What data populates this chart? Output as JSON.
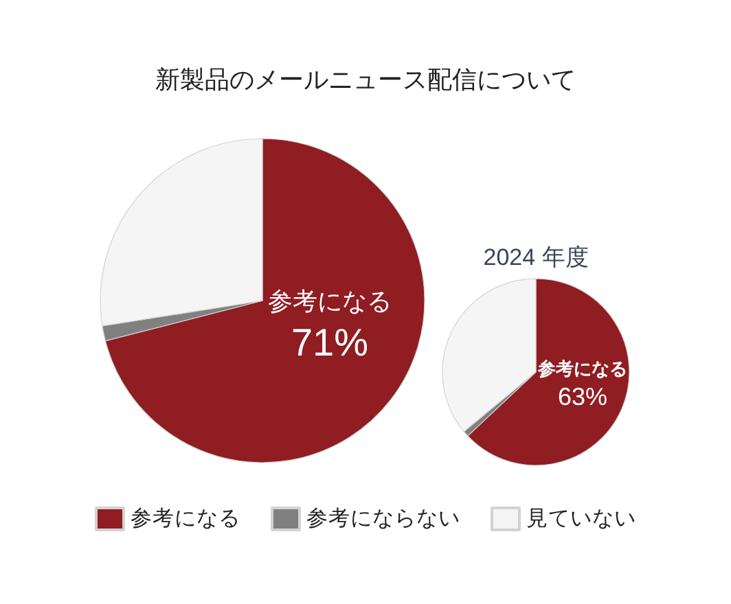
{
  "chart_data": [
    {
      "type": "pie",
      "title": "新製品のメールニュース配信について",
      "categories": [
        "参考になる",
        "参考にならない",
        "見ていない"
      ],
      "values": [
        71,
        1.5,
        27.5
      ],
      "colors": [
        "#8f1d22",
        "#808080",
        "#f5f5f5"
      ],
      "value_labels": [
        "71%",
        null,
        null
      ],
      "legend": "bottom"
    },
    {
      "type": "pie",
      "title": "2024 年度",
      "categories": [
        "参考になる",
        null,
        null
      ],
      "values": [
        63,
        1,
        36
      ],
      "colors": [
        "#8f1d22",
        "#808080",
        "#f5f5f5"
      ],
      "value_labels": [
        "63%",
        null,
        null
      ]
    }
  ]
}
